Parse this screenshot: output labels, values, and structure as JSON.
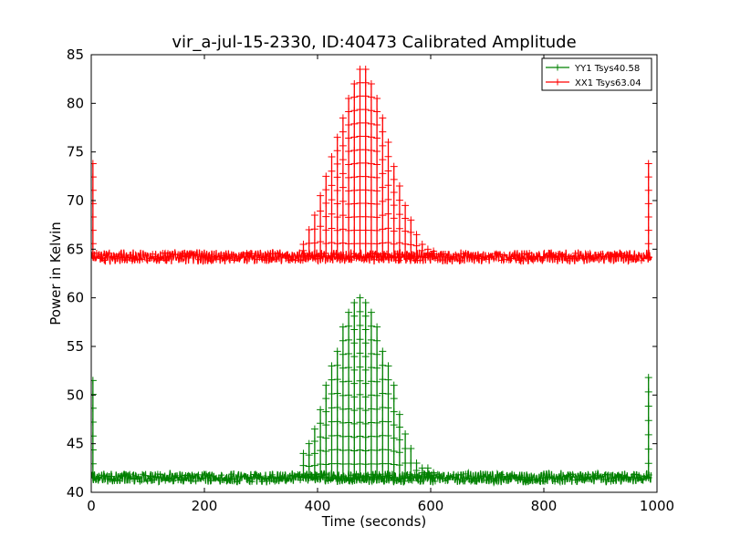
{
  "chart_data": {
    "type": "line",
    "title": "vir_a-jul-15-2330, ID:40473 Calibrated Amplitude",
    "xlabel": "Time (seconds)",
    "ylabel": "Power in Kelvin",
    "xlim": [
      0,
      1000
    ],
    "ylim": [
      40,
      85
    ],
    "xticks": [
      0,
      200,
      400,
      600,
      800,
      1000
    ],
    "xtick_labels": [
      "0",
      "200",
      "400",
      "600",
      "800",
      "1000"
    ],
    "yticks": [
      40,
      45,
      50,
      55,
      60,
      65,
      70,
      75,
      80,
      85
    ],
    "ytick_labels": [
      "40",
      "45",
      "50",
      "55",
      "60",
      "65",
      "70",
      "75",
      "80",
      "85"
    ],
    "grid": false,
    "legend_position": "top-right",
    "marker": "+",
    "series": [
      {
        "name": "YY1 Tsys40.58",
        "color": "#008000",
        "baseline": 41.5,
        "edge_spike_x": [
          3,
          985
        ],
        "edge_spike_peak": [
          51.5,
          51.8
        ],
        "spike_x": [
          375,
          385,
          395,
          405,
          415,
          425,
          435,
          445,
          455,
          465,
          475,
          485,
          495,
          505,
          515,
          525,
          535,
          545,
          555,
          565,
          575,
          585,
          595,
          605
        ],
        "spike_peak": [
          44.0,
          45.0,
          46.5,
          48.5,
          51.0,
          53.0,
          54.5,
          57.0,
          58.5,
          59.5,
          60.0,
          59.5,
          58.5,
          57.0,
          54.5,
          53.0,
          51.0,
          48.0,
          46.0,
          44.5,
          43.0,
          42.5,
          42.5,
          42.0
        ]
      },
      {
        "name": "XX1 Tsys63.04",
        "color": "#ff0000",
        "baseline": 64.2,
        "edge_spike_x": [
          3,
          985
        ],
        "edge_spike_peak": [
          73.8,
          73.8
        ],
        "spike_x": [
          375,
          385,
          395,
          405,
          415,
          425,
          435,
          445,
          455,
          465,
          475,
          485,
          495,
          505,
          515,
          525,
          535,
          545,
          555,
          565,
          575,
          585,
          595,
          605
        ],
        "spike_peak": [
          65.5,
          67.0,
          68.5,
          70.5,
          72.5,
          74.5,
          76.5,
          78.5,
          80.5,
          82.0,
          83.5,
          83.5,
          82.0,
          80.5,
          78.5,
          76.0,
          73.5,
          71.5,
          69.5,
          68.0,
          66.5,
          65.5,
          65.0,
          64.8
        ]
      }
    ]
  }
}
